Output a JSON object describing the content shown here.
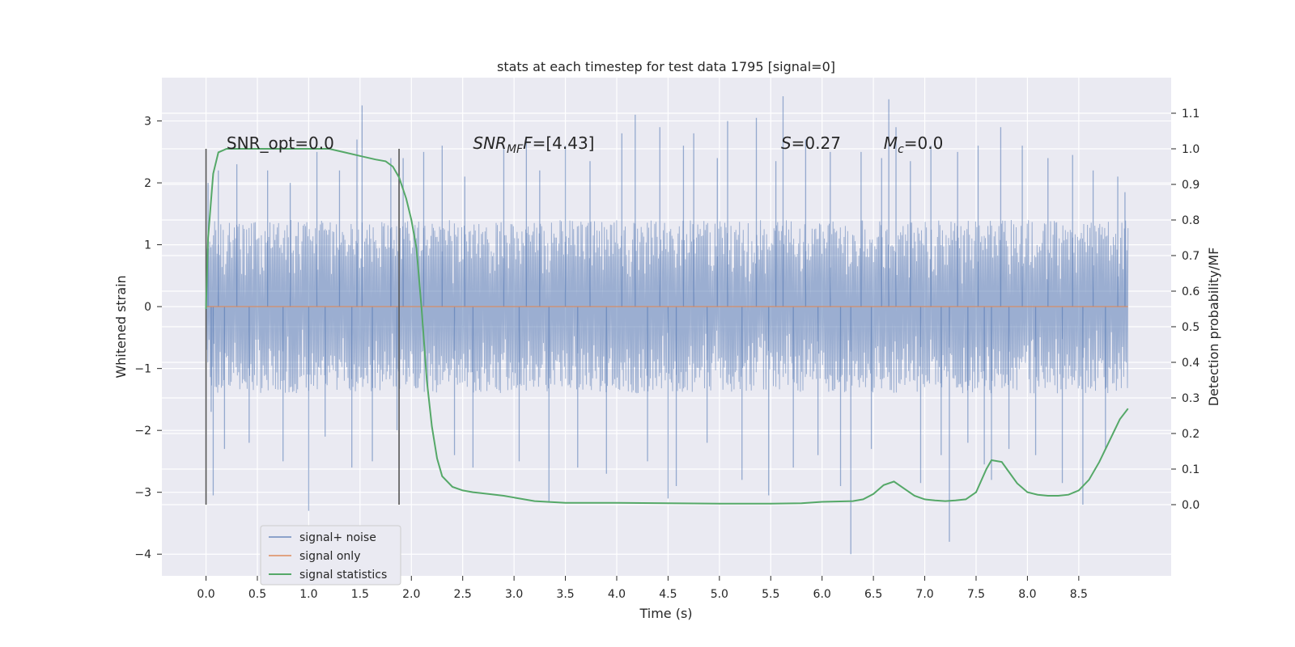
{
  "chart_data": {
    "type": "line",
    "title": "stats at each timestep for test data 1795 [signal=0]",
    "xlabel": "Time (s)",
    "ylabel": "Whitened strain",
    "y2label": "Detection probability/MF",
    "xlim": [
      -0.43,
      9.4
    ],
    "ylim": [
      -4.35,
      3.7
    ],
    "y2lim": [
      -0.2,
      1.2
    ],
    "x_ticks": [
      0.0,
      0.5,
      1.0,
      1.5,
      2.0,
      2.5,
      3.0,
      3.5,
      4.0,
      4.5,
      5.0,
      5.5,
      6.0,
      6.5,
      7.0,
      7.5,
      8.0,
      8.5
    ],
    "x_tick_labels": [
      "0.0",
      "0.5",
      "1.0",
      "1.5",
      "2.0",
      "2.5",
      "3.0",
      "3.5",
      "4.0",
      "4.5",
      "5.0",
      "5.5",
      "6.0",
      "6.5",
      "7.0",
      "7.5",
      "8.0",
      "8.5"
    ],
    "y_ticks": [
      3,
      2,
      1,
      0,
      -1,
      -2,
      -3,
      -4
    ],
    "y_tick_labels": [
      "3",
      "2",
      "1",
      "0",
      "−1",
      "−2",
      "−3",
      "−4"
    ],
    "y2_ticks": [
      1.1,
      1.0,
      0.9,
      0.8,
      0.7,
      0.6,
      0.5,
      0.4,
      0.3,
      0.2,
      0.1,
      0.0
    ],
    "y2_tick_labels": [
      "1.1",
      "1.0",
      "0.9",
      "0.8",
      "0.7",
      "0.6",
      "0.5",
      "0.4",
      "0.3",
      "0.2",
      "0.1",
      "0.0"
    ],
    "grid": true,
    "legend_position": "lower-left",
    "colors": {
      "background": "#eaeaf2",
      "grid": "#ffffff",
      "noise": "#4c72b0",
      "signal": "#dd8452",
      "stats": "#55a868",
      "marker": "#555555"
    },
    "series": [
      {
        "name": "signal+ noise",
        "axis": "left",
        "t_start": 0.0,
        "t_end": 8.98,
        "envelope": {
          "typical_min": -1.4,
          "typical_max": 1.4
        },
        "spikes": [
          [
            0.02,
            2.0
          ],
          [
            0.05,
            -1.7
          ],
          [
            0.07,
            -3.05
          ],
          [
            0.12,
            2.2
          ],
          [
            0.18,
            -2.3
          ],
          [
            0.3,
            2.3
          ],
          [
            0.42,
            -2.2
          ],
          [
            0.6,
            2.2
          ],
          [
            0.75,
            -2.5
          ],
          [
            0.82,
            2.0
          ],
          [
            1.0,
            -3.3
          ],
          [
            1.08,
            2.5
          ],
          [
            1.16,
            -2.1
          ],
          [
            1.3,
            2.2
          ],
          [
            1.42,
            -2.6
          ],
          [
            1.47,
            2.7
          ],
          [
            1.52,
            3.25
          ],
          [
            1.62,
            -2.5
          ],
          [
            1.8,
            2.4
          ],
          [
            1.86,
            -2.0
          ],
          [
            1.92,
            2.4
          ],
          [
            2.12,
            2.5
          ],
          [
            2.3,
            2.6
          ],
          [
            2.42,
            -2.4
          ],
          [
            2.52,
            2.1
          ],
          [
            2.6,
            -2.6
          ],
          [
            2.9,
            2.6
          ],
          [
            3.05,
            -2.5
          ],
          [
            3.12,
            2.75
          ],
          [
            3.25,
            2.2
          ],
          [
            3.34,
            -3.15
          ],
          [
            3.5,
            2.6
          ],
          [
            3.62,
            -2.6
          ],
          [
            3.74,
            2.35
          ],
          [
            3.9,
            -2.7
          ],
          [
            4.05,
            2.8
          ],
          [
            4.18,
            3.1
          ],
          [
            4.3,
            -2.5
          ],
          [
            4.42,
            2.9
          ],
          [
            4.5,
            -3.1
          ],
          [
            4.58,
            -2.9
          ],
          [
            4.65,
            2.6
          ],
          [
            4.75,
            2.8
          ],
          [
            4.88,
            -2.2
          ],
          [
            4.98,
            2.4
          ],
          [
            5.08,
            3.0
          ],
          [
            5.22,
            -2.8
          ],
          [
            5.36,
            3.05
          ],
          [
            5.48,
            -3.05
          ],
          [
            5.55,
            2.35
          ],
          [
            5.62,
            3.4
          ],
          [
            5.72,
            -2.6
          ],
          [
            5.84,
            2.7
          ],
          [
            5.96,
            -2.4
          ],
          [
            6.08,
            2.5
          ],
          [
            6.18,
            -2.9
          ],
          [
            6.28,
            -4.0
          ],
          [
            6.38,
            2.5
          ],
          [
            6.48,
            -2.3
          ],
          [
            6.58,
            2.4
          ],
          [
            6.65,
            3.35
          ],
          [
            6.72,
            2.9
          ],
          [
            6.86,
            2.35
          ],
          [
            6.96,
            -2.85
          ],
          [
            7.06,
            2.6
          ],
          [
            7.16,
            -2.4
          ],
          [
            7.24,
            -3.8
          ],
          [
            7.32,
            2.5
          ],
          [
            7.42,
            -2.2
          ],
          [
            7.52,
            2.6
          ],
          [
            7.58,
            -2.55
          ],
          [
            7.65,
            -2.8
          ],
          [
            7.74,
            2.9
          ],
          [
            7.82,
            -2.3
          ],
          [
            7.95,
            2.6
          ],
          [
            8.08,
            -2.4
          ],
          [
            8.2,
            2.4
          ],
          [
            8.34,
            -2.85
          ],
          [
            8.44,
            2.45
          ],
          [
            8.54,
            -3.2
          ],
          [
            8.64,
            2.2
          ],
          [
            8.76,
            -2.3
          ],
          [
            8.88,
            2.1
          ],
          [
            8.95,
            1.85
          ]
        ]
      },
      {
        "name": "signal only",
        "axis": "left",
        "x": [
          0.0,
          8.98
        ],
        "y": [
          0.0,
          0.0
        ]
      },
      {
        "name": "signal statistics",
        "axis": "right",
        "x": [
          0.0,
          0.02,
          0.07,
          0.12,
          0.2,
          0.3,
          0.5,
          0.8,
          1.0,
          1.2,
          1.35,
          1.5,
          1.65,
          1.75,
          1.82,
          1.88,
          1.95,
          2.0,
          2.05,
          2.1,
          2.15,
          2.2,
          2.25,
          2.3,
          2.4,
          2.5,
          2.6,
          2.75,
          2.9,
          3.0,
          3.2,
          3.5,
          4.0,
          4.5,
          5.0,
          5.5,
          5.8,
          6.0,
          6.3,
          6.4,
          6.5,
          6.6,
          6.7,
          6.8,
          6.9,
          7.0,
          7.1,
          7.2,
          7.3,
          7.4,
          7.5,
          7.6,
          7.65,
          7.75,
          7.8,
          7.9,
          8.0,
          8.1,
          8.2,
          8.3,
          8.4,
          8.5,
          8.6,
          8.7,
          8.8,
          8.9,
          8.98
        ],
        "y": [
          0.55,
          0.75,
          0.93,
          0.99,
          1.0,
          1.0,
          1.0,
          1.0,
          1.0,
          1.0,
          0.99,
          0.98,
          0.97,
          0.965,
          0.95,
          0.92,
          0.86,
          0.8,
          0.72,
          0.55,
          0.35,
          0.22,
          0.13,
          0.08,
          0.05,
          0.04,
          0.035,
          0.03,
          0.025,
          0.02,
          0.01,
          0.005,
          0.005,
          0.004,
          0.003,
          0.003,
          0.004,
          0.008,
          0.01,
          0.015,
          0.03,
          0.055,
          0.065,
          0.045,
          0.025,
          0.015,
          0.012,
          0.01,
          0.012,
          0.015,
          0.035,
          0.1,
          0.125,
          0.12,
          0.1,
          0.06,
          0.035,
          0.028,
          0.025,
          0.025,
          0.028,
          0.04,
          0.07,
          0.12,
          0.18,
          0.24,
          0.27
        ]
      }
    ],
    "markers": {
      "x": [
        0.0,
        1.88
      ],
      "y_from": -3.2,
      "y_to": 2.55
    },
    "annotations": {
      "snr_opt": {
        "text": "SNR_opt=0.0",
        "x": 0.2,
        "y": 2.55
      },
      "snr_mf": {
        "base": "SNR",
        "sub": "MF",
        "rest": "F=[4.43]",
        "x": 2.6,
        "y": 2.55
      },
      "s_value": {
        "var": "S",
        "rest": "=0.27",
        "x": 5.6,
        "y": 2.55
      },
      "mc_value": {
        "base": "M",
        "sub": "c",
        "rest": "=0.0",
        "x": 6.6,
        "y": 2.55
      }
    }
  }
}
